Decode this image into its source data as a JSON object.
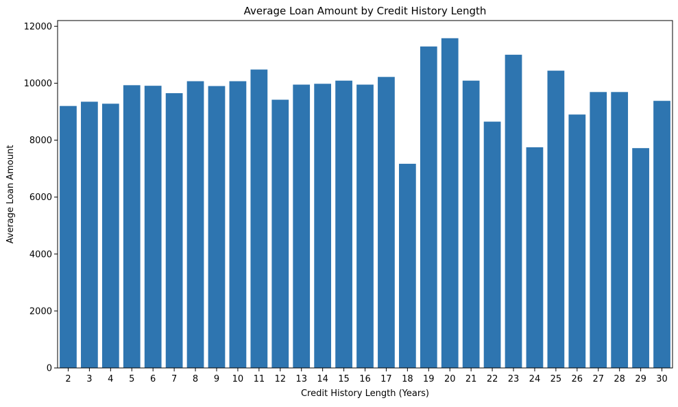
{
  "chart_data": {
    "type": "bar",
    "title": "Average Loan Amount by Credit History Length",
    "xlabel": "Credit History Length (Years)",
    "ylabel": "Average Loan Amount",
    "ylim": [
      0,
      12200
    ],
    "yticks": [
      0,
      2000,
      4000,
      6000,
      8000,
      10000,
      12000
    ],
    "grid": false,
    "legend": "none",
    "color": "#2e75b0",
    "categories": [
      "2",
      "3",
      "4",
      "5",
      "6",
      "7",
      "8",
      "9",
      "10",
      "11",
      "12",
      "13",
      "14",
      "15",
      "16",
      "17",
      "18",
      "19",
      "20",
      "21",
      "22",
      "23",
      "24",
      "25",
      "26",
      "27",
      "28",
      "29",
      "30"
    ],
    "values": [
      9200,
      9350,
      9280,
      9930,
      9910,
      9650,
      10070,
      9900,
      10070,
      10480,
      9420,
      9950,
      9980,
      10090,
      9950,
      10220,
      7170,
      11290,
      11580,
      10090,
      8650,
      11000,
      7750,
      10440,
      8900,
      9690,
      9690,
      7720,
      9380
    ]
  }
}
